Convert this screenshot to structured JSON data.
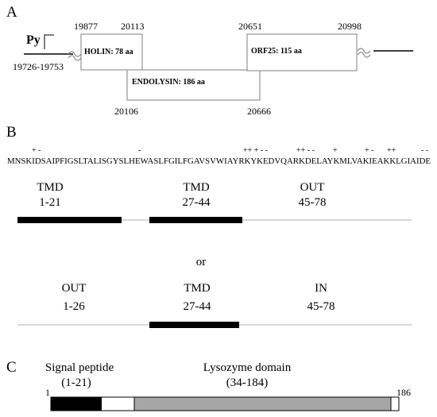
{
  "panel_a": {
    "label": "A",
    "promoter": "Py",
    "promoter_range": "19726-19753",
    "holin": {
      "label": "HOLIN: 78 aa",
      "start": "19877",
      "end": "20113"
    },
    "endolysin": {
      "label": "ENDOLYSIN: 186 aa",
      "start": "20106",
      "end": "20666"
    },
    "orf25": {
      "label": "ORF25: 115 aa",
      "start": "20651",
      "end": "20998"
    }
  },
  "panel_b": {
    "label": "B",
    "charges": [
      "+ -",
      "-",
      "++ + - -",
      "++ - -",
      "+",
      "+ -",
      "++",
      "- -"
    ],
    "sequence": "MNSKIDSAIPFIGSLTALISGYSLHEWASLFGILFGAVSVWIAYRKYKEDVQARKDELAYKMLVAKIEAKKLGIAIDE",
    "model1": [
      {
        "name": "TMD",
        "range": "1-21"
      },
      {
        "name": "TMD",
        "range": "27-44"
      },
      {
        "name": "OUT",
        "range": "45-78"
      }
    ],
    "or_label": "or",
    "model2": [
      {
        "name": "OUT",
        "range": "1-26"
      },
      {
        "name": "TMD",
        "range": "27-44"
      },
      {
        "name": "IN",
        "range": "45-78"
      }
    ]
  },
  "panel_c": {
    "label": "C",
    "signal_label": "Signal peptide",
    "signal_range": "(1-21)",
    "lysozyme_label": "Lysozyme domain",
    "lysozyme_range": "(34-184)",
    "start": "1",
    "end": "186"
  },
  "colors": {
    "line": "#000000",
    "box_stroke": "#7f7f7f",
    "lysozyme_fill": "#a6a6a6",
    "axis": "#b3b3b3"
  }
}
